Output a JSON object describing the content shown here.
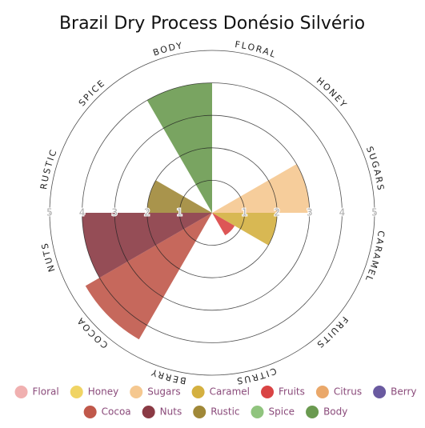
{
  "chart_data": {
    "type": "polar-area",
    "title": "Brazil Dry Process Donésio Silvério",
    "categories": [
      "FLORAL",
      "HONEY",
      "SUGARS",
      "CARAMEL",
      "FRUITS",
      "CITRUS",
      "BERRY",
      "COCOA",
      "NUTS",
      "RUSTIC",
      "SPICE",
      "BODY"
    ],
    "legend": [
      "Floral",
      "Honey",
      "Sugars",
      "Caramel",
      "Fruits",
      "Citrus",
      "Berry",
      "Cocoa",
      "Nuts",
      "Rustic",
      "Spice",
      "Body"
    ],
    "values": [
      0,
      0,
      3,
      2,
      0.8,
      0,
      0,
      4.5,
      4,
      2,
      0,
      4
    ],
    "colors": [
      "#f0b0b0",
      "#f0d464",
      "#f5c890",
      "#d4b040",
      "#d94444",
      "#eaa86a",
      "#6a5aa0",
      "#c0584a",
      "#8a3a44",
      "#a08838",
      "#90c47e",
      "#6a9a50"
    ],
    "ylim": [
      0,
      5
    ],
    "yticks": [
      1,
      2,
      3,
      4,
      5
    ],
    "grid": true
  }
}
